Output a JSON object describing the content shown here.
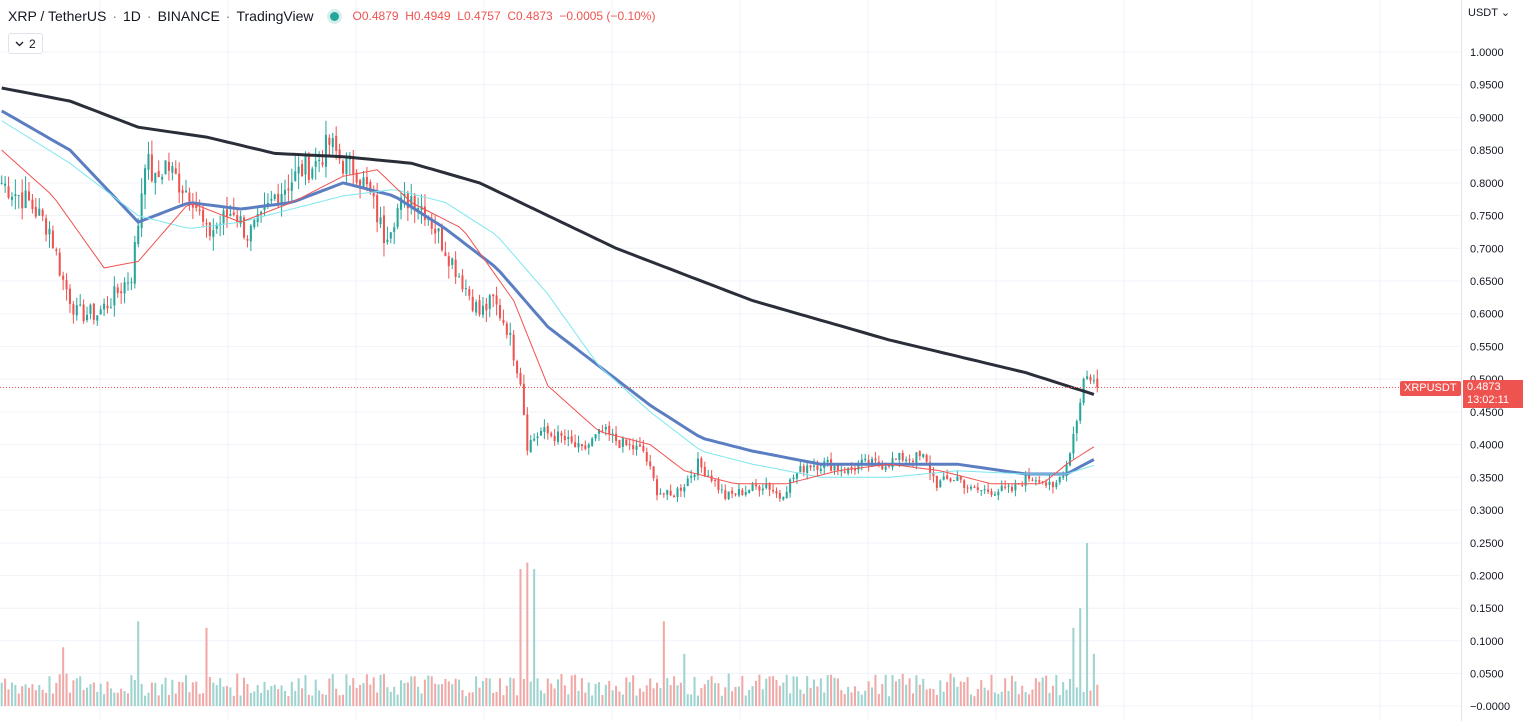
{
  "header": {
    "symbol": "XRP / TetherUS",
    "interval": "1D",
    "exchange": "BINANCE",
    "source": "TradingView",
    "sep": "·",
    "open": "O0.4879",
    "high": "H0.4949",
    "low": "L0.4757",
    "close": "C0.4873",
    "change": "−0.0005 (−0.10%)"
  },
  "legend_toggle": {
    "icon": "chevron-down-icon",
    "count": "2"
  },
  "axis": {
    "currency": "USDT",
    "currency_caret": "⌄"
  },
  "last_price": {
    "symbol_label": "XRPUSDT",
    "price": "0.4873",
    "countdown": "13:02:11"
  },
  "colors": {
    "up": "#26a69a",
    "down": "#ef5350",
    "vol_up": "#9ed4cf",
    "vol_down": "#f1a9a7",
    "sma_black": "#2a2e39",
    "sma_blue": "#5b7ec2",
    "sma_cyan": "#7ee6ee",
    "sma_red": "#ef5350",
    "grid": "#f0f3fa"
  },
  "chart_data": {
    "type": "candlestick",
    "title": "XRP / TetherUS · 1D · BINANCE",
    "price_axis": {
      "ticks": [
        "1.0000",
        "0.9500",
        "0.9000",
        "0.8500",
        "0.8000",
        "0.7500",
        "0.7000",
        "0.6500",
        "0.6000",
        "0.5500",
        "0.5000",
        "0.4500",
        "0.4000",
        "0.3500",
        "0.3000"
      ],
      "range": [
        0.27,
        1.04
      ]
    },
    "volume_axis": {
      "ticks": [
        "0.2500",
        "0.2000",
        "0.1500",
        "0.1000",
        "0.0500",
        "−0.0000"
      ],
      "range": [
        0,
        0.25
      ]
    },
    "last_close": 0.4873,
    "price_series_keypoints": [
      [
        0,
        0.8
      ],
      [
        8,
        0.77
      ],
      [
        14,
        0.73
      ],
      [
        18,
        0.65
      ],
      [
        22,
        0.6
      ],
      [
        28,
        0.6
      ],
      [
        32,
        0.62
      ],
      [
        38,
        0.66
      ],
      [
        40,
        0.74
      ],
      [
        42,
        0.84
      ],
      [
        45,
        0.8
      ],
      [
        48,
        0.83
      ],
      [
        52,
        0.8
      ],
      [
        56,
        0.78
      ],
      [
        60,
        0.72
      ],
      [
        64,
        0.74
      ],
      [
        68,
        0.76
      ],
      [
        72,
        0.72
      ],
      [
        76,
        0.74
      ],
      [
        80,
        0.78
      ],
      [
        84,
        0.8
      ],
      [
        88,
        0.82
      ],
      [
        92,
        0.83
      ],
      [
        96,
        0.86
      ],
      [
        100,
        0.83
      ],
      [
        104,
        0.82
      ],
      [
        108,
        0.78
      ],
      [
        112,
        0.72
      ],
      [
        116,
        0.76
      ],
      [
        120,
        0.78
      ],
      [
        124,
        0.76
      ],
      [
        128,
        0.72
      ],
      [
        132,
        0.68
      ],
      [
        136,
        0.64
      ],
      [
        140,
        0.6
      ],
      [
        144,
        0.62
      ],
      [
        148,
        0.58
      ],
      [
        152,
        0.5
      ],
      [
        154,
        0.4
      ],
      [
        158,
        0.42
      ],
      [
        164,
        0.41
      ],
      [
        170,
        0.39
      ],
      [
        176,
        0.42
      ],
      [
        182,
        0.4
      ],
      [
        188,
        0.39
      ],
      [
        192,
        0.33
      ],
      [
        196,
        0.32
      ],
      [
        200,
        0.34
      ],
      [
        204,
        0.37
      ],
      [
        208,
        0.35
      ],
      [
        212,
        0.32
      ],
      [
        218,
        0.33
      ],
      [
        224,
        0.34
      ],
      [
        228,
        0.32
      ],
      [
        232,
        0.35
      ],
      [
        236,
        0.37
      ],
      [
        242,
        0.37
      ],
      [
        248,
        0.36
      ],
      [
        252,
        0.37
      ],
      [
        258,
        0.37
      ],
      [
        264,
        0.38
      ],
      [
        270,
        0.38
      ],
      [
        274,
        0.34
      ],
      [
        280,
        0.35
      ],
      [
        284,
        0.33
      ],
      [
        290,
        0.33
      ],
      [
        296,
        0.33
      ],
      [
        300,
        0.35
      ],
      [
        304,
        0.35
      ],
      [
        308,
        0.33
      ],
      [
        312,
        0.37
      ],
      [
        315,
        0.44
      ],
      [
        317,
        0.5
      ],
      [
        319,
        0.505
      ],
      [
        321,
        0.4873
      ]
    ],
    "sma_lines": [
      {
        "color": "#2a2e39",
        "points": [
          [
            0,
            0.945
          ],
          [
            20,
            0.925
          ],
          [
            40,
            0.885
          ],
          [
            60,
            0.87
          ],
          [
            80,
            0.845
          ],
          [
            100,
            0.84
          ],
          [
            120,
            0.83
          ],
          [
            140,
            0.8
          ],
          [
            160,
            0.75
          ],
          [
            180,
            0.7
          ],
          [
            200,
            0.66
          ],
          [
            220,
            0.62
          ],
          [
            240,
            0.59
          ],
          [
            260,
            0.56
          ],
          [
            280,
            0.535
          ],
          [
            300,
            0.51
          ],
          [
            312,
            0.49
          ],
          [
            321,
            0.475
          ]
        ]
      },
      {
        "color": "#5b7ec2",
        "points": [
          [
            0,
            0.91
          ],
          [
            20,
            0.85
          ],
          [
            40,
            0.74
          ],
          [
            55,
            0.77
          ],
          [
            70,
            0.76
          ],
          [
            85,
            0.77
          ],
          [
            100,
            0.8
          ],
          [
            115,
            0.78
          ],
          [
            130,
            0.73
          ],
          [
            145,
            0.67
          ],
          [
            160,
            0.58
          ],
          [
            175,
            0.52
          ],
          [
            190,
            0.46
          ],
          [
            205,
            0.41
          ],
          [
            220,
            0.39
          ],
          [
            240,
            0.37
          ],
          [
            260,
            0.37
          ],
          [
            280,
            0.37
          ],
          [
            300,
            0.355
          ],
          [
            312,
            0.355
          ],
          [
            321,
            0.38
          ]
        ]
      },
      {
        "color": "#7ee6ee",
        "points": [
          [
            0,
            0.895
          ],
          [
            20,
            0.83
          ],
          [
            40,
            0.75
          ],
          [
            55,
            0.73
          ],
          [
            70,
            0.74
          ],
          [
            85,
            0.76
          ],
          [
            100,
            0.78
          ],
          [
            115,
            0.79
          ],
          [
            130,
            0.77
          ],
          [
            145,
            0.72
          ],
          [
            160,
            0.63
          ],
          [
            175,
            0.52
          ],
          [
            190,
            0.45
          ],
          [
            205,
            0.39
          ],
          [
            220,
            0.37
          ],
          [
            240,
            0.35
          ],
          [
            260,
            0.35
          ],
          [
            280,
            0.36
          ],
          [
            300,
            0.355
          ],
          [
            312,
            0.355
          ],
          [
            321,
            0.37
          ]
        ]
      },
      {
        "color": "#ef5350",
        "points": [
          [
            0,
            0.85
          ],
          [
            15,
            0.78
          ],
          [
            30,
            0.67
          ],
          [
            40,
            0.68
          ],
          [
            55,
            0.77
          ],
          [
            70,
            0.74
          ],
          [
            85,
            0.77
          ],
          [
            100,
            0.81
          ],
          [
            110,
            0.82
          ],
          [
            120,
            0.77
          ],
          [
            135,
            0.73
          ],
          [
            150,
            0.62
          ],
          [
            160,
            0.49
          ],
          [
            175,
            0.42
          ],
          [
            190,
            0.4
          ],
          [
            200,
            0.36
          ],
          [
            215,
            0.34
          ],
          [
            230,
            0.34
          ],
          [
            245,
            0.36
          ],
          [
            260,
            0.37
          ],
          [
            275,
            0.36
          ],
          [
            290,
            0.34
          ],
          [
            305,
            0.34
          ],
          [
            312,
            0.37
          ],
          [
            321,
            0.4
          ]
        ]
      }
    ],
    "volume_peaks": [
      [
        18,
        0.09
      ],
      [
        40,
        0.13
      ],
      [
        60,
        0.12
      ],
      [
        152,
        0.21
      ],
      [
        154,
        0.22
      ],
      [
        156,
        0.21
      ],
      [
        194,
        0.13
      ],
      [
        200,
        0.08
      ],
      [
        314,
        0.12
      ],
      [
        316,
        0.15
      ],
      [
        318,
        0.25
      ],
      [
        320,
        0.08
      ]
    ],
    "grid": true
  }
}
